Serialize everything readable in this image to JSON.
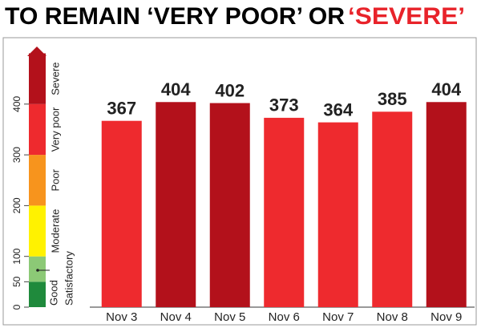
{
  "chart_data": {
    "type": "bar",
    "title": "TO REMAIN ‘VERY POOR’ OR ",
    "title_highlight": "‘SEVERE’",
    "title_highlight_color": "#e8232a",
    "categories": [
      "Nov 3",
      "Nov 4",
      "Nov 5",
      "Nov 6",
      "Nov 7",
      "Nov 8",
      "Nov 9"
    ],
    "values": [
      367,
      404,
      402,
      373,
      364,
      385,
      404
    ],
    "colors": [
      "#ee2a2e",
      "#b3111b",
      "#b3111b",
      "#ee2a2e",
      "#ee2a2e",
      "#ee2a2e",
      "#b3111b"
    ],
    "ylim": [
      0,
      500
    ],
    "yticks": [
      0,
      50,
      100,
      200,
      300,
      400
    ],
    "bands": [
      {
        "label": "Good",
        "from": 0,
        "to": 50,
        "color": "#1f8a3c"
      },
      {
        "label": "Satisfactory",
        "from": 50,
        "to": 100,
        "color": "#8cc976"
      },
      {
        "label": "Moderate",
        "from": 100,
        "to": 200,
        "color": "#fff200"
      },
      {
        "label": "Poor",
        "from": 200,
        "to": 300,
        "color": "#f7941d"
      },
      {
        "label": "Very poor",
        "from": 300,
        "to": 400,
        "color": "#ee2a2e"
      },
      {
        "label": "Severe",
        "from": 400,
        "to": 500,
        "color": "#b3111b"
      }
    ]
  }
}
